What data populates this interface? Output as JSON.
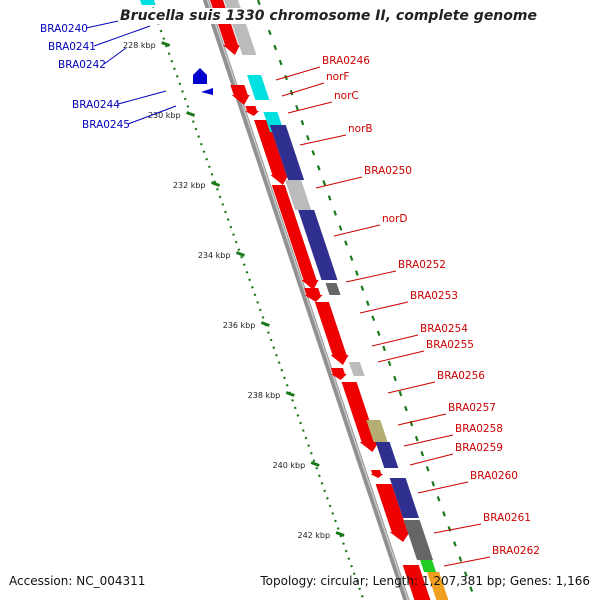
{
  "title": "Brucella suis 1330 chromosome II, complete genome",
  "footer": {
    "accession": "Accession: NC_004311",
    "topology": "Topology: circular; Length: 1,207,381 bp; Genes: 1,166"
  },
  "colors": {
    "forward_label": "#cc0000",
    "reverse_label": "#0000bb",
    "tick": "#1a7a1a",
    "backbone": "#909090",
    "red_gene": "#ee0000",
    "navy_gene": "#2f2f8f",
    "blue_gene": "#0000cc",
    "cyan_gene": "#00e0e0",
    "gray_gene": "#bbbbbb",
    "darkgray_gene": "#666666",
    "khaki_gene": "#b4ae72",
    "green_gene": "#22cc22"
  },
  "ruler": {
    "kbp_labels": [
      "228 kbp",
      "230 kbp",
      "232 kbp",
      "234 kbp",
      "236 kbp",
      "238 kbp",
      "240 kbp",
      "242 kbp"
    ]
  },
  "genes": {
    "reverse_labels": [
      "BRA0240",
      "BRA0241",
      "BRA0242",
      "BRA0244",
      "BRA0245"
    ],
    "forward_labels": [
      "BRA0246",
      "norF",
      "norC",
      "norB",
      "BRA0250",
      "norD",
      "BRA0252",
      "BRA0253",
      "BRA0254",
      "BRA0255",
      "BRA0256",
      "BRA0257",
      "BRA0258",
      "BRA0259",
      "BRA0260",
      "BRA0261",
      "BRA0262"
    ]
  }
}
